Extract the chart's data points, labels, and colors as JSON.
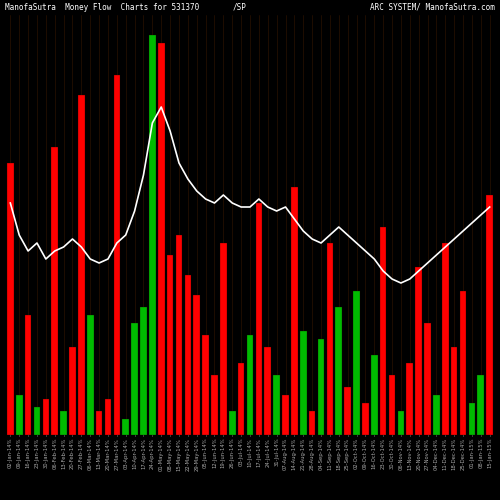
{
  "title_left": "ManofaSutra  Money Flow  Charts for 531370",
  "title_center": "/SP",
  "title_right": "ARC SYSTEM/ ManofaSutra.com",
  "background_color": "#000000",
  "bar_edge_color": "#1a0800",
  "line_color": "#ffffff",
  "red_color": "#ff0000",
  "green_color": "#00bb00",
  "n_bars": 55,
  "bar_values": [
    0.68,
    0.1,
    0.3,
    0.07,
    0.09,
    0.72,
    0.06,
    0.22,
    0.85,
    0.3,
    0.06,
    0.09,
    0.9,
    0.04,
    0.28,
    0.32,
    1.0,
    0.98,
    0.45,
    0.5,
    0.4,
    0.35,
    0.25,
    0.15,
    0.48,
    0.06,
    0.18,
    0.25,
    0.58,
    0.22,
    0.15,
    0.1,
    0.62,
    0.26,
    0.06,
    0.24,
    0.48,
    0.32,
    0.12,
    0.36,
    0.08,
    0.2,
    0.52,
    0.15,
    0.06,
    0.18,
    0.42,
    0.28,
    0.1,
    0.48,
    0.22,
    0.36,
    0.08,
    0.15,
    0.6
  ],
  "bar_colors": [
    "red",
    "green",
    "red",
    "green",
    "red",
    "red",
    "green",
    "red",
    "red",
    "green",
    "red",
    "red",
    "red",
    "green",
    "green",
    "green",
    "green",
    "red",
    "red",
    "red",
    "red",
    "red",
    "red",
    "red",
    "red",
    "green",
    "red",
    "green",
    "red",
    "red",
    "green",
    "red",
    "red",
    "green",
    "red",
    "green",
    "red",
    "green",
    "red",
    "green",
    "red",
    "green",
    "red",
    "red",
    "green",
    "red",
    "red",
    "red",
    "green",
    "red",
    "red",
    "red",
    "green",
    "green",
    "red"
  ],
  "line_values": [
    0.58,
    0.5,
    0.46,
    0.48,
    0.44,
    0.46,
    0.47,
    0.49,
    0.47,
    0.44,
    0.43,
    0.44,
    0.48,
    0.5,
    0.56,
    0.65,
    0.78,
    0.82,
    0.76,
    0.68,
    0.64,
    0.61,
    0.59,
    0.58,
    0.6,
    0.58,
    0.57,
    0.57,
    0.59,
    0.57,
    0.56,
    0.57,
    0.54,
    0.51,
    0.49,
    0.48,
    0.5,
    0.52,
    0.5,
    0.48,
    0.46,
    0.44,
    0.41,
    0.39,
    0.38,
    0.39,
    0.41,
    0.43,
    0.45,
    0.47,
    0.49,
    0.51,
    0.53,
    0.55,
    0.57
  ],
  "x_labels": [
    "02-Jan-14%",
    "09-Jan-14%",
    "16-Jan-14%",
    "23-Jan-14%",
    "30-Jan-14%",
    "06-Feb-14%",
    "13-Feb-14%",
    "20-Feb-14%",
    "27-Feb-14%",
    "06-Mar-14%",
    "13-Mar-14%",
    "20-Mar-14%",
    "27-Mar-14%",
    "03-Apr-14%",
    "10-Apr-14%",
    "17-Apr-14%",
    "24-Apr-14%",
    "01-May-14%",
    "08-May-14%",
    "15-May-14%",
    "22-May-14%",
    "29-May-14%",
    "05-Jun-14%",
    "12-Jun-14%",
    "19-Jun-14%",
    "26-Jun-14%",
    "03-Jul-14%",
    "10-Jul-14%",
    "17-Jul-14%",
    "24-Jul-14%",
    "31-Jul-14%",
    "07-Aug-14%",
    "14-Aug-14%",
    "21-Aug-14%",
    "28-Aug-14%",
    "04-Sep-14%",
    "11-Sep-14%",
    "18-Sep-14%",
    "25-Sep-14%",
    "02-Oct-14%",
    "09-Oct-14%",
    "16-Oct-14%",
    "23-Oct-14%",
    "30-Oct-14%",
    "06-Nov-14%",
    "13-Nov-14%",
    "20-Nov-14%",
    "27-Nov-14%",
    "04-Dec-14%",
    "11-Dec-14%",
    "18-Dec-14%",
    "25-Dec-14%",
    "01-Jan-15%",
    "08-Jan-15%",
    "15-Jan-15%"
  ],
  "grid_color": "#3a1800",
  "title_fontsize": 5.5,
  "tick_fontsize": 3.8,
  "tick_color": "#aaaaaa",
  "ylim_max": 1.05
}
